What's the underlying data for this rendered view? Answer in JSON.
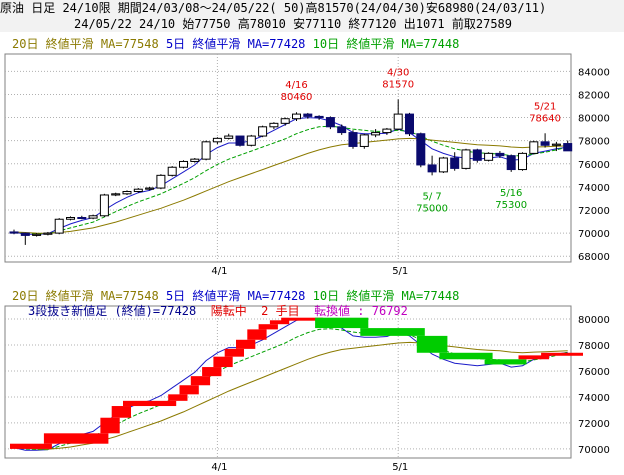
{
  "header": {
    "line1": "原油 日足 24/10限 期間24/03/08～24/05/22( 50)高81570(24/04/30)安68980(24/03/11)",
    "line2": "24/05/22 24/10 始77750 高78010 安77110 終77120 出1071 前取27589"
  },
  "top_panel": {
    "legend": {
      "ma20": "20日 終値平滑 MA=77548",
      "ma5": "5日 終値平滑 MA=77428",
      "ma10": "10日 終値平滑 MA=77448"
    },
    "annotations": [
      {
        "date": "4/16",
        "value": "80460",
        "color": "#e00000",
        "pos": "above"
      },
      {
        "date": "4/30",
        "value": "81570",
        "color": "#e00000",
        "pos": "above"
      },
      {
        "date": "5/21",
        "value": "78640",
        "color": "#e00000",
        "pos": "above"
      },
      {
        "date": "5/ 7",
        "value": "75000",
        "color": "#00a000",
        "pos": "below"
      },
      {
        "date": "5/16",
        "value": "75300",
        "color": "#00a000",
        "pos": "below"
      }
    ]
  },
  "bottom_panel": {
    "legend": {
      "ma20": "20日 終値平滑 MA=77548",
      "ma5": "5日 終値平滑 MA=77428",
      "ma10": "10日 終値平滑 MA=77448"
    },
    "subtitle": {
      "part1": "3段抜き新値足 (終値)=77428",
      "part2": "陽転中",
      "part3": "2 手目",
      "part4": "転換値 : 76792"
    }
  },
  "colors": {
    "bull_candle": "#ffffff",
    "bear_candle": "#0a0a6e",
    "ma5": "#1a1ac8",
    "ma10": "#00a000",
    "ma20": "#8b7a00",
    "kagi_up": "#ff0000",
    "kagi_down": "#00cc00",
    "grid": "#b0b0b0"
  },
  "chart_data": [
    {
      "type": "candlestick",
      "title": "原油 日足 24/10限",
      "x_ticks": [
        {
          "label": "4/1",
          "index": 18
        },
        {
          "label": "5/1",
          "index": 34
        }
      ],
      "y_ticks": [
        68000,
        70000,
        72000,
        74000,
        76000,
        78000,
        80000,
        82000,
        84000
      ],
      "ylim": [
        67500,
        85500
      ],
      "grid": true,
      "candles": [
        {
          "o": 70100,
          "h": 70300,
          "l": 69900,
          "c": 70000
        },
        {
          "o": 70000,
          "h": 70050,
          "l": 68980,
          "c": 69800
        },
        {
          "o": 69800,
          "h": 70000,
          "l": 69700,
          "c": 69900
        },
        {
          "o": 69900,
          "h": 70100,
          "l": 69800,
          "c": 70000
        },
        {
          "o": 70000,
          "h": 71300,
          "l": 69900,
          "c": 71200
        },
        {
          "o": 71200,
          "h": 71450,
          "l": 71100,
          "c": 71350
        },
        {
          "o": 71350,
          "h": 71500,
          "l": 71200,
          "c": 71300
        },
        {
          "o": 71300,
          "h": 71600,
          "l": 71200,
          "c": 71500
        },
        {
          "o": 71500,
          "h": 73400,
          "l": 71400,
          "c": 73300
        },
        {
          "o": 73300,
          "h": 73500,
          "l": 73200,
          "c": 73400
        },
        {
          "o": 73400,
          "h": 73700,
          "l": 73300,
          "c": 73600
        },
        {
          "o": 73600,
          "h": 73900,
          "l": 73500,
          "c": 73800
        },
        {
          "o": 73800,
          "h": 74000,
          "l": 73700,
          "c": 73900
        },
        {
          "o": 73900,
          "h": 75100,
          "l": 73800,
          "c": 75000
        },
        {
          "o": 75000,
          "h": 75800,
          "l": 74900,
          "c": 75700
        },
        {
          "o": 75700,
          "h": 76300,
          "l": 75600,
          "c": 76200
        },
        {
          "o": 76200,
          "h": 76500,
          "l": 76100,
          "c": 76400
        },
        {
          "o": 76400,
          "h": 78000,
          "l": 76300,
          "c": 77900
        },
        {
          "o": 77900,
          "h": 78300,
          "l": 77700,
          "c": 78200
        },
        {
          "o": 78200,
          "h": 78600,
          "l": 78100,
          "c": 78400
        },
        {
          "o": 78400,
          "h": 78300,
          "l": 77500,
          "c": 77600
        },
        {
          "o": 77600,
          "h": 78500,
          "l": 77500,
          "c": 78400
        },
        {
          "o": 78400,
          "h": 79300,
          "l": 78300,
          "c": 79200
        },
        {
          "o": 79200,
          "h": 79600,
          "l": 79000,
          "c": 79500
        },
        {
          "o": 79500,
          "h": 80000,
          "l": 79300,
          "c": 79900
        },
        {
          "o": 79900,
          "h": 80460,
          "l": 79700,
          "c": 80300
        },
        {
          "o": 80300,
          "h": 80400,
          "l": 79900,
          "c": 80100
        },
        {
          "o": 80100,
          "h": 80200,
          "l": 79800,
          "c": 80000
        },
        {
          "o": 80000,
          "h": 80100,
          "l": 79000,
          "c": 79200
        },
        {
          "o": 79200,
          "h": 79400,
          "l": 78500,
          "c": 78700
        },
        {
          "o": 78700,
          "h": 78900,
          "l": 77300,
          "c": 77500
        },
        {
          "o": 77500,
          "h": 78600,
          "l": 77300,
          "c": 78500
        },
        {
          "o": 78500,
          "h": 79000,
          "l": 78300,
          "c": 78700
        },
        {
          "o": 78700,
          "h": 79100,
          "l": 78500,
          "c": 79000
        },
        {
          "o": 79000,
          "h": 81570,
          "l": 78900,
          "c": 80300
        },
        {
          "o": 80300,
          "h": 80400,
          "l": 78400,
          "c": 78600
        },
        {
          "o": 78600,
          "h": 78700,
          "l": 75700,
          "c": 75900
        },
        {
          "o": 75900,
          "h": 76700,
          "l": 75000,
          "c": 75300
        },
        {
          "o": 75300,
          "h": 76600,
          "l": 75200,
          "c": 76500
        },
        {
          "o": 76500,
          "h": 77000,
          "l": 75400,
          "c": 75600
        },
        {
          "o": 75600,
          "h": 77300,
          "l": 75500,
          "c": 77200
        },
        {
          "o": 77200,
          "h": 77300,
          "l": 76100,
          "c": 76300
        },
        {
          "o": 76300,
          "h": 77000,
          "l": 76200,
          "c": 76900
        },
        {
          "o": 76900,
          "h": 77100,
          "l": 76500,
          "c": 76700
        },
        {
          "o": 76700,
          "h": 76800,
          "l": 75300,
          "c": 75500
        },
        {
          "o": 75500,
          "h": 77000,
          "l": 75400,
          "c": 76900
        },
        {
          "o": 76900,
          "h": 78000,
          "l": 76800,
          "c": 77900
        },
        {
          "o": 77900,
          "h": 78640,
          "l": 77400,
          "c": 77600
        },
        {
          "o": 77600,
          "h": 77900,
          "l": 77100,
          "c": 77700
        },
        {
          "o": 77750,
          "h": 78010,
          "l": 77110,
          "c": 77120
        }
      ],
      "series": [
        {
          "name": "5日 終値平滑",
          "color": "#1a1ac8",
          "values": [
            70100,
            69900,
            69900,
            69950,
            70400,
            70800,
            71100,
            71350,
            72000,
            72600,
            73100,
            73500,
            73700,
            74100,
            74700,
            75300,
            75900,
            76800,
            77400,
            77800,
            77800,
            78000,
            78400,
            78900,
            79400,
            79900,
            80000,
            79950,
            79700,
            79300,
            78700,
            78600,
            78600,
            78650,
            79000,
            78700,
            78000,
            77300,
            76900,
            76600,
            76500,
            76400,
            76500,
            76600,
            76300,
            76400,
            76900,
            77100,
            77300,
            77428
          ]
        },
        {
          "name": "10日 終値平滑",
          "color": "#00a000",
          "values": [
            70100,
            70000,
            69950,
            69950,
            70200,
            70450,
            70700,
            70950,
            71400,
            71850,
            72300,
            72700,
            73050,
            73400,
            73850,
            74300,
            74800,
            75400,
            75950,
            76400,
            76750,
            77100,
            77450,
            77800,
            78150,
            78600,
            78950,
            79200,
            79250,
            79150,
            79000,
            78900,
            78800,
            78800,
            78900,
            78800,
            78400,
            77950,
            77600,
            77300,
            77100,
            76950,
            76900,
            76850,
            76700,
            76700,
            76850,
            77000,
            77200,
            77448
          ]
        },
        {
          "name": "20日 終値平滑",
          "color": "#8b7a00",
          "values": [
            70100,
            70050,
            70000,
            69980,
            70050,
            70150,
            70300,
            70450,
            70700,
            70950,
            71250,
            71550,
            71850,
            72150,
            72500,
            72850,
            73250,
            73650,
            74050,
            74450,
            74800,
            75150,
            75500,
            75850,
            76200,
            76550,
            76900,
            77200,
            77450,
            77650,
            77750,
            77850,
            77950,
            78050,
            78150,
            78200,
            78150,
            78050,
            77950,
            77850,
            77750,
            77650,
            77600,
            77550,
            77450,
            77400,
            77450,
            77480,
            77520,
            77548
          ]
        }
      ]
    },
    {
      "type": "kagi",
      "title": "3段抜き新値足 (終値)",
      "x_ticks": [
        {
          "label": "4/1",
          "index": 18
        },
        {
          "label": "5/1",
          "index": 34
        }
      ],
      "y_ticks": [
        70000,
        72000,
        74000,
        76000,
        78000,
        80000
      ],
      "ylim": [
        69300,
        81000
      ],
      "grid": true,
      "bars": [
        {
          "i0": 0,
          "i1": 3,
          "from": 70000,
          "to": 70400,
          "dir": "up"
        },
        {
          "i0": 3,
          "i1": 8,
          "from": 70400,
          "to": 71200,
          "dir": "up"
        },
        {
          "i0": 8,
          "i1": 9,
          "from": 71200,
          "to": 72400,
          "dir": "up"
        },
        {
          "i0": 9,
          "i1": 10,
          "from": 72400,
          "to": 73300,
          "dir": "up"
        },
        {
          "i0": 10,
          "i1": 14,
          "from": 73300,
          "to": 73700,
          "dir": "up"
        },
        {
          "i0": 14,
          "i1": 15,
          "from": 73700,
          "to": 74200,
          "dir": "up"
        },
        {
          "i0": 15,
          "i1": 16,
          "from": 74200,
          "to": 74900,
          "dir": "up"
        },
        {
          "i0": 16,
          "i1": 17,
          "from": 74900,
          "to": 75600,
          "dir": "up"
        },
        {
          "i0": 17,
          "i1": 18,
          "from": 75600,
          "to": 76300,
          "dir": "up"
        },
        {
          "i0": 18,
          "i1": 19,
          "from": 76300,
          "to": 77100,
          "dir": "up"
        },
        {
          "i0": 19,
          "i1": 20,
          "from": 77100,
          "to": 77700,
          "dir": "up"
        },
        {
          "i0": 20,
          "i1": 21,
          "from": 77700,
          "to": 78400,
          "dir": "up"
        },
        {
          "i0": 21,
          "i1": 22,
          "from": 78400,
          "to": 79200,
          "dir": "up"
        },
        {
          "i0": 22,
          "i1": 23,
          "from": 79200,
          "to": 79600,
          "dir": "up"
        },
        {
          "i0": 23,
          "i1": 24,
          "from": 79600,
          "to": 79900,
          "dir": "up"
        },
        {
          "i0": 24,
          "i1": 27,
          "from": 79900,
          "to": 80100,
          "dir": "up"
        },
        {
          "i0": 27,
          "i1": 31,
          "from": 80100,
          "to": 79300,
          "dir": "down"
        },
        {
          "i0": 31,
          "i1": 36,
          "from": 79300,
          "to": 78700,
          "dir": "down"
        },
        {
          "i0": 36,
          "i1": 38,
          "from": 78700,
          "to": 77400,
          "dir": "down"
        },
        {
          "i0": 38,
          "i1": 42,
          "from": 77400,
          "to": 76900,
          "dir": "down"
        },
        {
          "i0": 42,
          "i1": 45,
          "from": 76900,
          "to": 76500,
          "dir": "down"
        },
        {
          "i0": 45,
          "i1": 47,
          "from": 76900,
          "to": 77200,
          "dir": "up"
        },
        {
          "i0": 47,
          "i1": 50,
          "from": 77200,
          "to": 77400,
          "dir": "up"
        }
      ]
    }
  ]
}
